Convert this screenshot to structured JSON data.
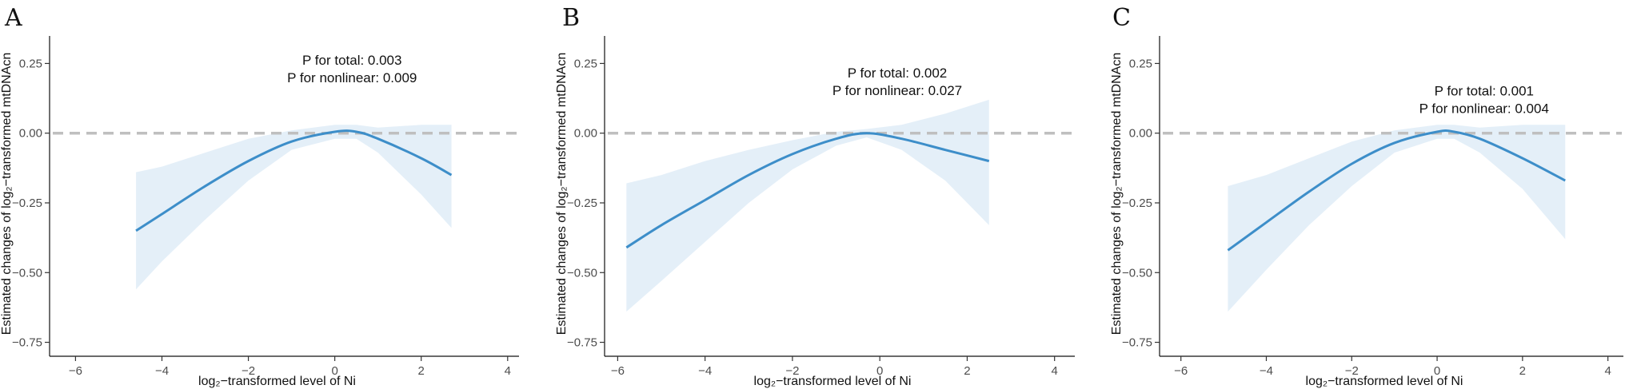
{
  "chart_data": [
    {
      "type": "line",
      "panel_label": "A",
      "xlabel": "log₂−transformed level of Ni",
      "ylabel": "Estimated changes of log₂−transformed mtDNAcn",
      "xlim": [
        -6.6,
        4.3
      ],
      "ylim": [
        -0.8,
        0.32
      ],
      "xticks": [
        "−6",
        "−4",
        "−2",
        "0",
        "2",
        "4"
      ],
      "xtick_values": [
        -6,
        -4,
        -2,
        0,
        2,
        4
      ],
      "yticks": [
        "0.25",
        "0.00",
        "−0.25",
        "−0.50",
        "−0.75"
      ],
      "ytick_values": [
        0.25,
        0,
        -0.25,
        -0.5,
        -0.75
      ],
      "reference_line": 0,
      "annotations": [
        "P for total: 0.003",
        "P for nonlinear:  0.009"
      ],
      "annotation_anchor": [
        0.4,
        0.245
      ],
      "series": [
        {
          "x": [
            -4.6,
            -4.0,
            -3.0,
            -2.0,
            -1.0,
            0.0,
            0.5,
            1.0,
            2.0,
            2.7
          ],
          "y": [
            -0.35,
            -0.29,
            -0.19,
            -0.1,
            -0.03,
            0.005,
            0.005,
            -0.02,
            -0.09,
            -0.15
          ],
          "lower": [
            -0.56,
            -0.46,
            -0.31,
            -0.17,
            -0.06,
            -0.02,
            -0.02,
            -0.07,
            -0.22,
            -0.34
          ],
          "upper": [
            -0.14,
            -0.12,
            -0.07,
            -0.02,
            0.01,
            0.03,
            0.03,
            0.02,
            0.03,
            0.03
          ]
        }
      ]
    },
    {
      "type": "line",
      "panel_label": "B",
      "xlabel": "log₂−transformed level of Ni",
      "ylabel": "Estimated changes of log₂−transformed mtDNAcn",
      "xlim": [
        -6.3,
        4.5
      ],
      "ylim": [
        -0.8,
        0.32
      ],
      "xticks": [
        "−6",
        "−4",
        "−2",
        "0",
        "2",
        "4"
      ],
      "xtick_values": [
        -6,
        -4,
        -2,
        0,
        2,
        4
      ],
      "yticks": [
        "0.25",
        "0.00",
        "−0.25",
        "−0.50",
        "−0.75"
      ],
      "ytick_values": [
        0.25,
        0,
        -0.25,
        -0.5,
        -0.75
      ],
      "reference_line": 0,
      "annotations": [
        "P for total: 0.002",
        "P for nonlinear:  0.027"
      ],
      "annotation_anchor": [
        0.4,
        0.2
      ],
      "series": [
        {
          "x": [
            -5.8,
            -5.0,
            -4.0,
            -3.0,
            -2.0,
            -1.0,
            -0.3,
            0.5,
            1.5,
            2.5
          ],
          "y": [
            -0.41,
            -0.33,
            -0.24,
            -0.15,
            -0.075,
            -0.02,
            0.0,
            -0.02,
            -0.06,
            -0.1
          ],
          "lower": [
            -0.64,
            -0.53,
            -0.39,
            -0.25,
            -0.13,
            -0.045,
            -0.015,
            -0.06,
            -0.17,
            -0.33
          ],
          "upper": [
            -0.18,
            -0.15,
            -0.1,
            -0.06,
            -0.025,
            0.005,
            0.015,
            0.03,
            0.07,
            0.12
          ]
        }
      ]
    },
    {
      "type": "line",
      "panel_label": "C",
      "xlabel": "log₂−transformed level of Ni",
      "ylabel": "Estimated changes of log₂−transformed mtDNAcn",
      "xlim": [
        -6.5,
        4.4
      ],
      "ylim": [
        -0.8,
        0.32
      ],
      "xticks": [
        "−6",
        "−4",
        "−2",
        "0",
        "2",
        "4"
      ],
      "xtick_values": [
        -6,
        -4,
        -2,
        0,
        2,
        4
      ],
      "yticks": [
        "0.25",
        "0.00",
        "−0.25",
        "−0.50",
        "−0.75"
      ],
      "ytick_values": [
        0.25,
        0,
        -0.25,
        -0.5,
        -0.75
      ],
      "reference_line": 0,
      "annotations": [
        "P for total: 0.001",
        "P for nonlinear:  0.004"
      ],
      "annotation_anchor": [
        1.1,
        0.135
      ],
      "series": [
        {
          "x": [
            -4.9,
            -4.0,
            -3.0,
            -2.0,
            -1.0,
            0.0,
            0.4,
            1.0,
            2.0,
            3.0
          ],
          "y": [
            -0.42,
            -0.32,
            -0.21,
            -0.11,
            -0.035,
            0.005,
            0.005,
            -0.02,
            -0.09,
            -0.17
          ],
          "lower": [
            -0.64,
            -0.49,
            -0.33,
            -0.19,
            -0.07,
            -0.02,
            -0.02,
            -0.07,
            -0.2,
            -0.38
          ],
          "upper": [
            -0.19,
            -0.15,
            -0.09,
            -0.03,
            0.01,
            0.03,
            0.03,
            0.02,
            0.03,
            0.03
          ]
        }
      ]
    }
  ]
}
